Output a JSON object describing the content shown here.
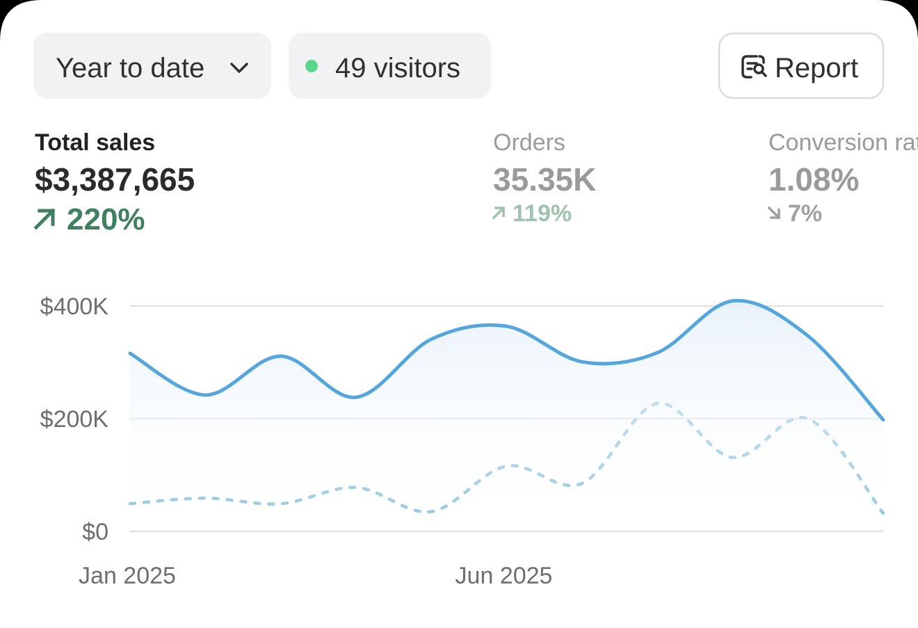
{
  "controls": {
    "date_range": "Year to date",
    "visitors": "49 visitors",
    "report": "Report"
  },
  "metrics": [
    {
      "label": "Total sales",
      "value": "$3,387,665",
      "change": "220%",
      "direction": "up"
    },
    {
      "label": "Orders",
      "value": "35.35K",
      "change": "119%",
      "direction": "up"
    },
    {
      "label": "Conversion rate",
      "value": "1.08%",
      "change": "7%",
      "direction": "down"
    }
  ],
  "chart_data": {
    "type": "line",
    "categories": [
      "Jan 2025",
      null,
      null,
      null,
      null,
      "Jun 2025",
      null,
      null,
      null,
      null,
      null
    ],
    "series": [
      {
        "color": "#55a6dc",
        "style": "solid",
        "values": [
          316000,
          242000,
          311000,
          238000,
          341000,
          364000,
          301000,
          317000,
          409000,
          347000,
          198000
        ]
      },
      {
        "color": "#93c6df",
        "style": "dotted",
        "values": [
          49000,
          59000,
          49000,
          78000,
          35000,
          116000,
          85000,
          227000,
          131000,
          200000,
          32000
        ]
      }
    ],
    "ylim": [
      0,
      400000
    ],
    "yticks": [
      {
        "value": 0,
        "label": "$0"
      },
      {
        "value": 200000,
        "label": "$200K"
      },
      {
        "value": 400000,
        "label": "$400K"
      }
    ],
    "grid": true
  }
}
